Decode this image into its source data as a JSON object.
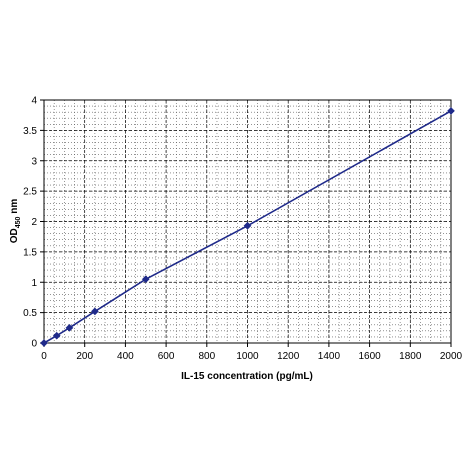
{
  "chart_data": {
    "type": "scatter",
    "title": "",
    "xlabel": "IL-15 concentration (pg/mL)",
    "ylabel_main": "OD",
    "ylabel_sub": "450",
    "ylabel_unit": " nm",
    "xlim": [
      0,
      2000
    ],
    "ylim": [
      0,
      4
    ],
    "x_ticks": [
      0,
      200,
      400,
      600,
      800,
      1000,
      1200,
      1400,
      1600,
      1800,
      2000
    ],
    "y_ticks": [
      0,
      0.5,
      1,
      1.5,
      2,
      2.5,
      3,
      3.5,
      4
    ],
    "x_tick_labels": [
      "0",
      "200",
      "400",
      "600",
      "800",
      "1000",
      "1200",
      "1400",
      "1600",
      "1800",
      "2000"
    ],
    "y_tick_labels": [
      "0",
      "0.5",
      "1",
      "1.5",
      "2",
      "2.5",
      "3",
      "3.5",
      "4"
    ],
    "grid": true,
    "minor_grid": true,
    "legend": "none",
    "series": [
      {
        "x": [
          0,
          62.5,
          125,
          250,
          500,
          1000,
          2000
        ],
        "y": [
          0.0,
          0.12,
          0.25,
          0.52,
          1.05,
          1.93,
          3.82
        ],
        "color": "#1f2a8a"
      }
    ]
  }
}
